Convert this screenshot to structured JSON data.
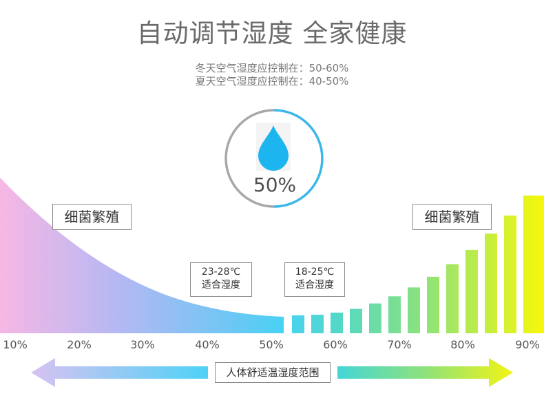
{
  "header": {
    "title": "自动调节湿度 全家健康",
    "winter_line": "冬天空气湿度应控制在：50-60%",
    "summer_line": "夏天空气湿度应控制在：40-50%"
  },
  "gauge": {
    "value_label": "50%",
    "level": 0.5,
    "ring_color_active": "#3bb7ea",
    "ring_color_inactive": "#a8a8a8",
    "icon": "water-drop-icon",
    "icon_color": "#1cb5f0"
  },
  "zones": {
    "left_label": "细菌繁殖",
    "right_label": "细菌繁殖",
    "comfort_left": {
      "temp": "23-28℃",
      "desc": "适合湿度"
    },
    "comfort_right": {
      "temp": "18-25℃",
      "desc": "适合湿度"
    }
  },
  "axis": {
    "ticks": [
      "10%",
      "20%",
      "30%",
      "40%",
      "50%",
      "60%",
      "70%",
      "80%",
      "90%"
    ]
  },
  "range_arrow": {
    "label": "人体舒适温湿度范围"
  },
  "colors": {
    "gradient_left": "#f6b7e4",
    "gradient_mid": "#48d2f4",
    "gradient_green": "#8ee27a",
    "gradient_right": "#f6f80a"
  }
}
